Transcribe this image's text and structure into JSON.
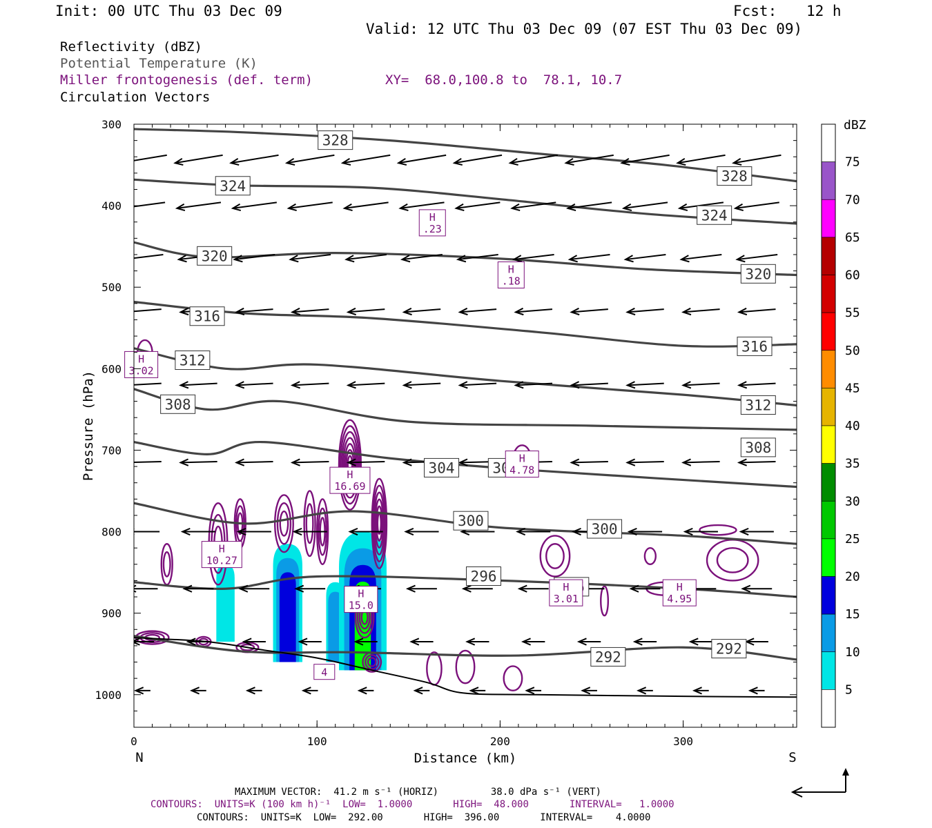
{
  "header": {
    "init": "Init: 00 UTC Thu 03 Dec 09",
    "fcst_label": "Fcst:",
    "fcst_value": "12 h",
    "valid": "Valid: 12 UTC Thu 03 Dec 09 (07 EST Thu 03 Dec 09)"
  },
  "fields": {
    "reflectivity": "Reflectivity (dBZ)",
    "theta": "Potential Temperature (K)",
    "frontogenesis": "Miller frontogenesis (def. term)",
    "xy": "XY=  68.0,100.8 to  78.1, 10.7",
    "vectors": "Circulation Vectors"
  },
  "footer": {
    "max_vector": "MAXIMUM VECTOR:  41.2 m s⁻¹ (HORIZ)         38.0 dPa s⁻¹ (VERT)",
    "contours1": "CONTOURS:  UNITS=K (100 km h)⁻¹  LOW=  1.0000       HIGH=  48.000       INTERVAL=   1.0000",
    "contours2": "CONTOURS:  UNITS=K  LOW=  292.00       HIGH=  396.00       INTERVAL=    4.0000"
  },
  "colors": {
    "theta": "#444444",
    "frontogenesis": "#7b117b",
    "vector": "#000000"
  },
  "chart_data": {
    "type": "cross-section",
    "xlabel": "Distance (km)",
    "ylabel": "Pressure (hPa)",
    "x_ticks": [
      0,
      100,
      200,
      300
    ],
    "y_ticks": [
      300,
      400,
      500,
      600,
      700,
      800,
      900,
      1000
    ],
    "xlim": [
      0,
      362
    ],
    "ylim": [
      300,
      1040
    ],
    "left_end_label": "N",
    "right_end_label": "S",
    "colorbar": {
      "unit": "dBZ",
      "levels": [
        5,
        10,
        15,
        20,
        25,
        30,
        35,
        40,
        45,
        50,
        55,
        60,
        65,
        70,
        75
      ],
      "colors": [
        "#ffffff",
        "#00e6e6",
        "#0a9be6",
        "#0000dd",
        "#00ff00",
        "#00c800",
        "#008c00",
        "#ffff00",
        "#e6b400",
        "#ff8c00",
        "#ff0000",
        "#d20000",
        "#b40000",
        "#ff00ff",
        "#9955c9",
        "#ffffff"
      ]
    },
    "theta_contours": [
      {
        "label": "328",
        "points": [
          [
            0,
            306
          ],
          [
            60,
            310
          ],
          [
            140,
            320
          ],
          [
            220,
            336
          ],
          [
            290,
            350
          ],
          [
            362,
            370
          ]
        ],
        "labels_at": [
          [
            110,
            320
          ],
          [
            328,
            364
          ]
        ]
      },
      {
        "label": "324",
        "points": [
          [
            0,
            368
          ],
          [
            55,
            375
          ],
          [
            130,
            378
          ],
          [
            200,
            392
          ],
          [
            280,
            410
          ],
          [
            362,
            422
          ]
        ],
        "labels_at": [
          [
            54,
            376
          ],
          [
            317,
            412
          ]
        ]
      },
      {
        "label": "320",
        "points": [
          [
            0,
            445
          ],
          [
            40,
            463
          ],
          [
            110,
            458
          ],
          [
            200,
            465
          ],
          [
            280,
            478
          ],
          [
            362,
            485
          ]
        ],
        "labels_at": [
          [
            44,
            462
          ],
          [
            341,
            484
          ]
        ]
      },
      {
        "label": "316",
        "points": [
          [
            0,
            518
          ],
          [
            60,
            532
          ],
          [
            130,
            538
          ],
          [
            220,
            555
          ],
          [
            300,
            572
          ],
          [
            362,
            570
          ]
        ],
        "labels_at": [
          [
            40,
            536
          ],
          [
            339,
            573
          ]
        ]
      },
      {
        "label": "312",
        "points": [
          [
            0,
            575
          ],
          [
            50,
            600
          ],
          [
            100,
            595
          ],
          [
            200,
            615
          ],
          [
            300,
            632
          ],
          [
            362,
            645
          ]
        ],
        "labels_at": [
          [
            32,
            590
          ],
          [
            341,
            645
          ]
        ]
      },
      {
        "label": "308",
        "points": [
          [
            0,
            625
          ],
          [
            40,
            650
          ],
          [
            80,
            640
          ],
          [
            150,
            665
          ],
          [
            250,
            670
          ],
          [
            362,
            675
          ]
        ],
        "labels_at": [
          [
            24,
            644
          ],
          [
            341,
            697
          ]
        ]
      },
      {
        "label": "304",
        "points": [
          [
            0,
            690
          ],
          [
            40,
            705
          ],
          [
            70,
            690
          ],
          [
            140,
            710
          ],
          [
            220,
            725
          ],
          [
            362,
            745
          ]
        ],
        "labels_at": [
          [
            168,
            722
          ],
          [
            203,
            722
          ]
        ]
      },
      {
        "label": "300",
        "points": [
          [
            0,
            765
          ],
          [
            60,
            790
          ],
          [
            120,
            775
          ],
          [
            200,
            795
          ],
          [
            300,
            805
          ],
          [
            362,
            815
          ]
        ],
        "labels_at": [
          [
            184,
            787
          ],
          [
            257,
            797
          ]
        ]
      },
      {
        "label": "296",
        "points": [
          [
            0,
            862
          ],
          [
            50,
            870
          ],
          [
            100,
            855
          ],
          [
            200,
            860
          ],
          [
            300,
            870
          ],
          [
            362,
            880
          ]
        ],
        "labels_at": [
          [
            191,
            855
          ],
          [
            239,
            868
          ]
        ]
      },
      {
        "label": "292",
        "points": [
          [
            0,
            928
          ],
          [
            60,
            947
          ],
          [
            120,
            948
          ],
          [
            210,
            952
          ],
          [
            300,
            942
          ],
          [
            362,
            957
          ]
        ],
        "labels_at": [
          [
            259,
            954
          ],
          [
            325,
            944
          ]
        ]
      }
    ],
    "frontogenesis_maxima": [
      {
        "label": "H",
        "value": "16.69",
        "x": 118,
        "p": 737
      },
      {
        "label": "H",
        "value": "10.27",
        "x": 48,
        "p": 828
      },
      {
        "label": "H",
        "value": "15.0",
        "x": 124,
        "p": 883
      },
      {
        "label": "H",
        "value": ".23",
        "x": 163,
        "p": 421
      },
      {
        "label": "H",
        "value": ".18",
        "x": 206,
        "p": 485
      },
      {
        "label": "H",
        "value": "3.02",
        "x": 4,
        "p": 595
      },
      {
        "label": "H",
        "value": "4.78",
        "x": 212,
        "p": 717
      },
      {
        "label": "H",
        "value": "3.01",
        "x": 236,
        "p": 875
      },
      {
        "label": "H",
        "value": "4.95",
        "x": 298,
        "p": 875
      },
      {
        "label": "",
        "value": "4",
        "x": 104,
        "p": 972
      }
    ]
  }
}
